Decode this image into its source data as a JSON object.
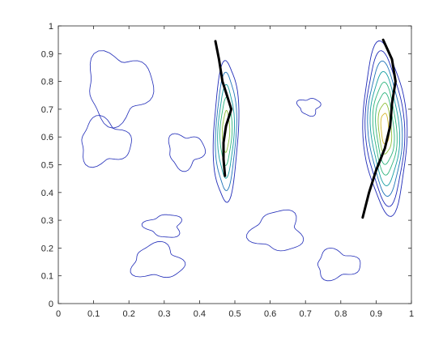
{
  "chart_data": {
    "type": "contour",
    "title": "",
    "xlabel": "",
    "ylabel": "",
    "xlim": [
      0,
      1
    ],
    "ylim": [
      0,
      1
    ],
    "xticks": [
      "0",
      "0.1",
      "0.2",
      "0.3",
      "0.4",
      "0.5",
      "0.6",
      "0.7",
      "0.8",
      "0.9",
      "1"
    ],
    "yticks": [
      "0",
      "0.1",
      "0.2",
      "0.3",
      "0.4",
      "0.5",
      "0.6",
      "0.7",
      "0.8",
      "0.9",
      "1"
    ],
    "grid": false,
    "legend": false,
    "colormap": [
      "#1f2bb8",
      "#1e73b8",
      "#169ea2",
      "#2fb57d",
      "#8fbf3a",
      "#d4b72c"
    ],
    "ridge_color": "#000000",
    "peaks": [
      {
        "center": [
          0.475,
          0.62
        ],
        "spread": [
          0.035,
          0.25
        ],
        "levels": 5
      },
      {
        "center": [
          0.925,
          0.63
        ],
        "spread": [
          0.06,
          0.3
        ],
        "levels": 8
      }
    ],
    "ridges": [
      {
        "x": [
          0.445,
          0.455,
          0.465,
          0.48,
          0.49,
          0.475,
          0.468,
          0.468,
          0.472
        ],
        "y": [
          0.945,
          0.88,
          0.8,
          0.74,
          0.7,
          0.64,
          0.58,
          0.52,
          0.46
        ]
      },
      {
        "x": [
          0.92,
          0.945,
          0.955,
          0.945,
          0.94,
          0.925,
          0.9,
          0.88,
          0.862
        ],
        "y": [
          0.95,
          0.88,
          0.8,
          0.72,
          0.64,
          0.56,
          0.48,
          0.4,
          0.31
        ]
      }
    ]
  }
}
